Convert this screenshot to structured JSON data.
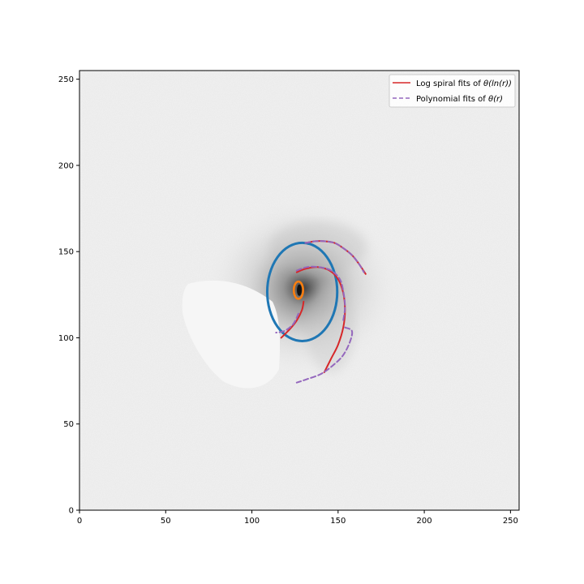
{
  "chart_data": {
    "type": "line",
    "title": "",
    "xlabel": "",
    "ylabel": "",
    "xlim": [
      0,
      255
    ],
    "ylim": [
      0,
      255
    ],
    "x_ticks": [
      0,
      50,
      100,
      150,
      200,
      250
    ],
    "y_ticks": [
      0,
      50,
      100,
      150,
      200,
      250
    ],
    "grid": false,
    "legend_position": "top-right",
    "background": "grayscale galaxy image",
    "legend": [
      {
        "prefix": "Log spiral fits of ",
        "math": "θ(ln(r))",
        "color": "#d62728",
        "style": "solid"
      },
      {
        "prefix": "Polynomial fits of ",
        "math": "θ(r)",
        "color": "#9467bd",
        "style": "dashed"
      }
    ],
    "series": [
      {
        "name": "Log spiral fits of θ(ln(r))",
        "color": "#d62728",
        "style": "solid",
        "x": [
          131,
          137,
          142,
          148,
          153,
          158,
          162,
          166
        ],
        "y": [
          155,
          156,
          156,
          155,
          152,
          148,
          143,
          137
        ]
      },
      {
        "name": "Log spiral fits of θ(ln(r))",
        "color": "#d62728",
        "style": "solid",
        "x": [
          126,
          131,
          138,
          145,
          150,
          153,
          154,
          153,
          150,
          146,
          142
        ],
        "y": [
          138,
          140,
          141,
          139,
          134,
          126,
          116,
          106,
          96,
          88,
          80
        ]
      },
      {
        "name": "Log spiral fits of θ(ln(r))",
        "color": "#d62728",
        "style": "solid",
        "x": [
          130,
          129,
          126,
          122,
          117
        ],
        "y": [
          121,
          116,
          110,
          105,
          100
        ]
      },
      {
        "name": "Polynomial fits of θ(r)",
        "color": "#9467bd",
        "style": "dashed",
        "x": [
          131,
          137,
          142,
          148,
          153,
          158,
          162,
          165
        ],
        "y": [
          155,
          156,
          156,
          155,
          152,
          148,
          143,
          138
        ]
      },
      {
        "name": "Polynomial fits of θ(r)",
        "color": "#9467bd",
        "style": "dashed",
        "x": [
          126,
          132,
          139,
          146,
          151,
          153,
          154,
          153
        ],
        "y": [
          139,
          141,
          141,
          139,
          134,
          127,
          118,
          110
        ]
      },
      {
        "name": "Polynomial fits of θ(r)",
        "color": "#9467bd",
        "style": "dashed",
        "x": [
          154,
          158,
          157,
          153,
          147,
          140,
          132,
          126
        ],
        "y": [
          106,
          104,
          98,
          90,
          84,
          79,
          76,
          74
        ]
      },
      {
        "name": "Polynomial fits of θ(r)",
        "color": "#9467bd",
        "style": "dashed",
        "x": [
          127,
          124,
          119,
          114
        ],
        "y": [
          114,
          108,
          104,
          103
        ]
      }
    ],
    "ellipses": [
      {
        "color": "#1f77b4",
        "cx": 129.2,
        "cy": 126.6,
        "rx": 20.3,
        "ry": 28.5,
        "stroke": 3
      },
      {
        "color": "#ff7f0e",
        "cx": 127.0,
        "cy": 127.6,
        "rx": 2.7,
        "ry": 5.0,
        "stroke": 2.5
      }
    ],
    "core": {
      "color": "#111111",
      "cx": 127.5,
      "cy": 127.6,
      "rx": 1.4,
      "ry": 3.3
    }
  }
}
